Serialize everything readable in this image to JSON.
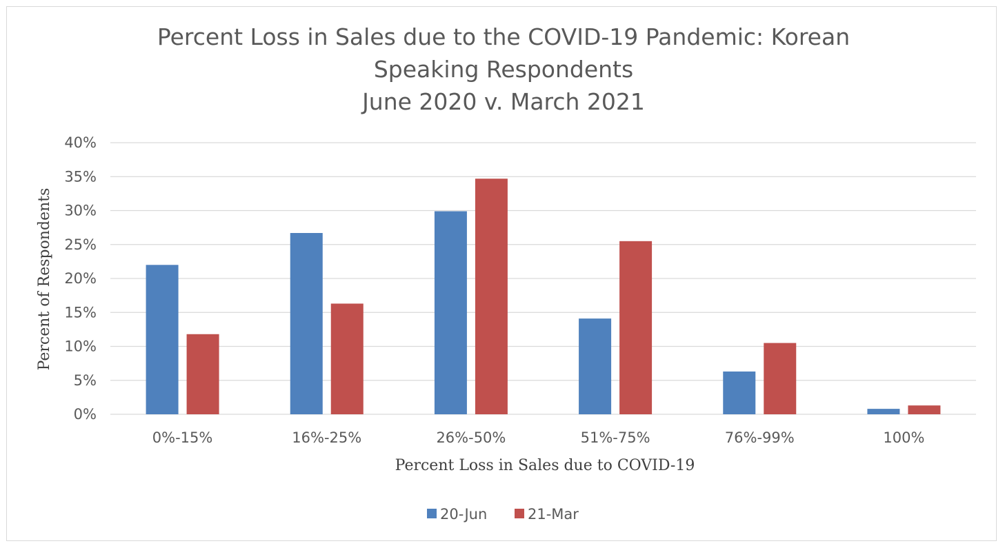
{
  "chart_data": {
    "type": "bar",
    "title_lines": [
      "Percent Loss in Sales due to the COVID-19 Pandemic: Korean",
      "Speaking Respondents",
      "June 2020 v. March 2021"
    ],
    "xlabel": "Percent Loss in Sales due to COVID-19",
    "ylabel": "Percent of Respondents",
    "categories": [
      "0%-15%",
      "16%-25%",
      "26%-50%",
      "51%-75%",
      "76%-99%",
      "100%"
    ],
    "series": [
      {
        "name": "20-Jun",
        "color": "#4f81bd",
        "values": [
          22.0,
          26.7,
          29.9,
          14.1,
          6.3,
          0.8
        ]
      },
      {
        "name": "21-Mar",
        "color": "#c0504d",
        "values": [
          11.8,
          16.3,
          34.7,
          25.5,
          10.5,
          1.3
        ]
      }
    ],
    "ylim": [
      0,
      40
    ],
    "yticks": [
      "0%",
      "5%",
      "10%",
      "15%",
      "20%",
      "25%",
      "30%",
      "35%",
      "40%"
    ],
    "grid": true,
    "legend_position": "bottom"
  }
}
